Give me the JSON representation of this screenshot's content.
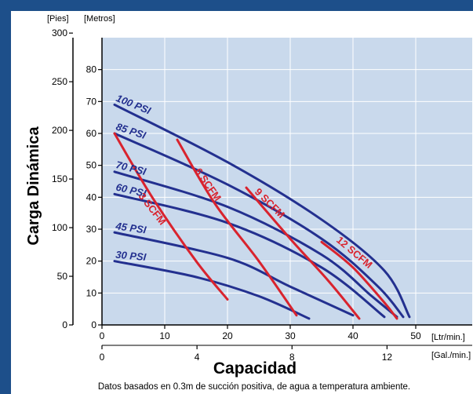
{
  "chart_data": {
    "type": "line",
    "title": "",
    "ylabel": "Carga Dinámica",
    "xlabel": "Capacidad",
    "y_units": [
      "[Pies]",
      "[Metros]"
    ],
    "x_units": [
      "[Ltr/min.]",
      "[Gal./min.]"
    ],
    "y_left": {
      "ticks": [
        "0",
        "50",
        "100",
        "150",
        "200",
        "250",
        "300"
      ],
      "values": [
        0,
        50,
        100,
        150,
        200,
        250,
        300
      ]
    },
    "y_right": {
      "ticks": [
        "0",
        "10",
        "20",
        "30",
        "40",
        "50",
        "60",
        "70",
        "80"
      ],
      "values": [
        0,
        10,
        20,
        30,
        40,
        50,
        60,
        70,
        80
      ]
    },
    "x_top": {
      "ticks": [
        "0",
        "10",
        "20",
        "30",
        "40",
        "50"
      ],
      "values": [
        0,
        10,
        20,
        30,
        40,
        50
      ]
    },
    "x_bottom": {
      "ticks": [
        "0",
        "4",
        "8",
        "12"
      ],
      "values": [
        0,
        4,
        8,
        12
      ]
    },
    "xlim_ltr": [
      0,
      59
    ],
    "ylim_m": [
      0,
      90
    ],
    "grid": true,
    "footnote": "Datos basados en 0.3m de succión positiva, de agua a temperatura ambiente.",
    "pressure_series": [
      {
        "name": "100 PSI",
        "color": "#23308f",
        "points": [
          [
            2,
            69
          ],
          [
            20,
            51
          ],
          [
            35,
            33
          ],
          [
            45,
            17
          ],
          [
            49,
            2.5
          ]
        ]
      },
      {
        "name": "85 PSI",
        "color": "#23308f",
        "points": [
          [
            2,
            60
          ],
          [
            20,
            44
          ],
          [
            35,
            27
          ],
          [
            44,
            12
          ],
          [
            48,
            2.5
          ]
        ]
      },
      {
        "name": "70 PSI",
        "color": "#23308f",
        "points": [
          [
            2,
            48
          ],
          [
            20,
            37
          ],
          [
            35,
            22
          ],
          [
            43,
            9
          ],
          [
            47,
            2.5
          ]
        ]
      },
      {
        "name": "60 PSI",
        "color": "#23308f",
        "points": [
          [
            2,
            41
          ],
          [
            20,
            32
          ],
          [
            35,
            18
          ],
          [
            45,
            2.5
          ]
        ]
      },
      {
        "name": "45 PSI",
        "color": "#23308f",
        "points": [
          [
            2,
            29
          ],
          [
            20,
            21
          ],
          [
            30,
            12
          ],
          [
            40,
            3
          ]
        ]
      },
      {
        "name": "30 PSI",
        "color": "#23308f",
        "points": [
          [
            2,
            20
          ],
          [
            15,
            15
          ],
          [
            25,
            9
          ],
          [
            33,
            2
          ]
        ]
      }
    ],
    "air_series": [
      {
        "name": "3 SCFM",
        "color": "#d9232e",
        "points": [
          [
            2,
            60
          ],
          [
            8,
            40
          ],
          [
            15,
            20
          ],
          [
            20,
            8
          ]
        ]
      },
      {
        "name": "6 SCFM",
        "color": "#d9232e",
        "points": [
          [
            12,
            58
          ],
          [
            18,
            38
          ],
          [
            25,
            20
          ],
          [
            31,
            3
          ]
        ]
      },
      {
        "name": "9 SCFM",
        "color": "#d9232e",
        "points": [
          [
            23,
            43
          ],
          [
            30,
            27
          ],
          [
            36,
            14
          ],
          [
            41,
            2
          ]
        ]
      },
      {
        "name": "12 SCFM",
        "color": "#d9232e",
        "points": [
          [
            35,
            26
          ],
          [
            40,
            18
          ],
          [
            45,
            7
          ],
          [
            47,
            2
          ]
        ]
      }
    ]
  }
}
